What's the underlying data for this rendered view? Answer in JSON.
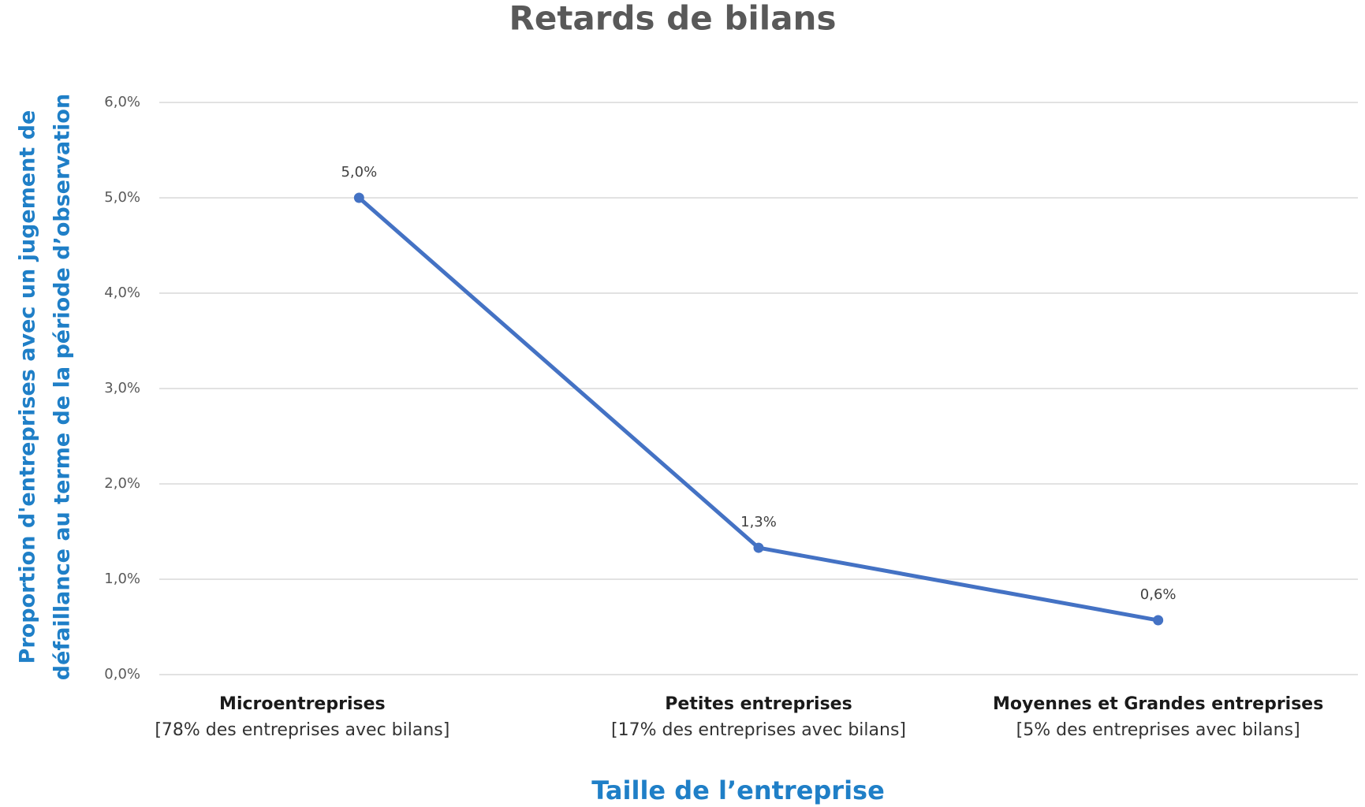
{
  "chart_data": {
    "type": "line",
    "title": "Retards de bilans",
    "ylabel": [
      "Proportion d'entreprises avec un jugement de",
      "défaillance au terme de la période d’observation"
    ],
    "xlabel": "Taille de l’entreprise",
    "categories": [
      "Microentreprises",
      "Petites entreprises",
      "Moyennes et Grandes entreprises"
    ],
    "category_notes": [
      "[78% des entreprises avec bilans]",
      "[17% des entreprises avec bilans]",
      "[5% des entreprises avec bilans]"
    ],
    "series": [
      {
        "name": "Retards de bilans",
        "color": "#4472c4",
        "values": [
          5.0,
          1.33,
          0.57
        ],
        "value_labels": [
          "5,0%",
          "1,3%",
          "0,6%"
        ]
      }
    ],
    "ylim": [
      0,
      6
    ],
    "yticks": [
      {
        "value": 0,
        "label": "0,0%"
      },
      {
        "value": 1,
        "label": "1,0%"
      },
      {
        "value": 2,
        "label": "2,0%"
      },
      {
        "value": 3,
        "label": "3,0%"
      },
      {
        "value": 4,
        "label": "4,0%"
      },
      {
        "value": 5,
        "label": "5,0%"
      },
      {
        "value": 6,
        "label": "6,0%"
      }
    ],
    "grid": true
  }
}
